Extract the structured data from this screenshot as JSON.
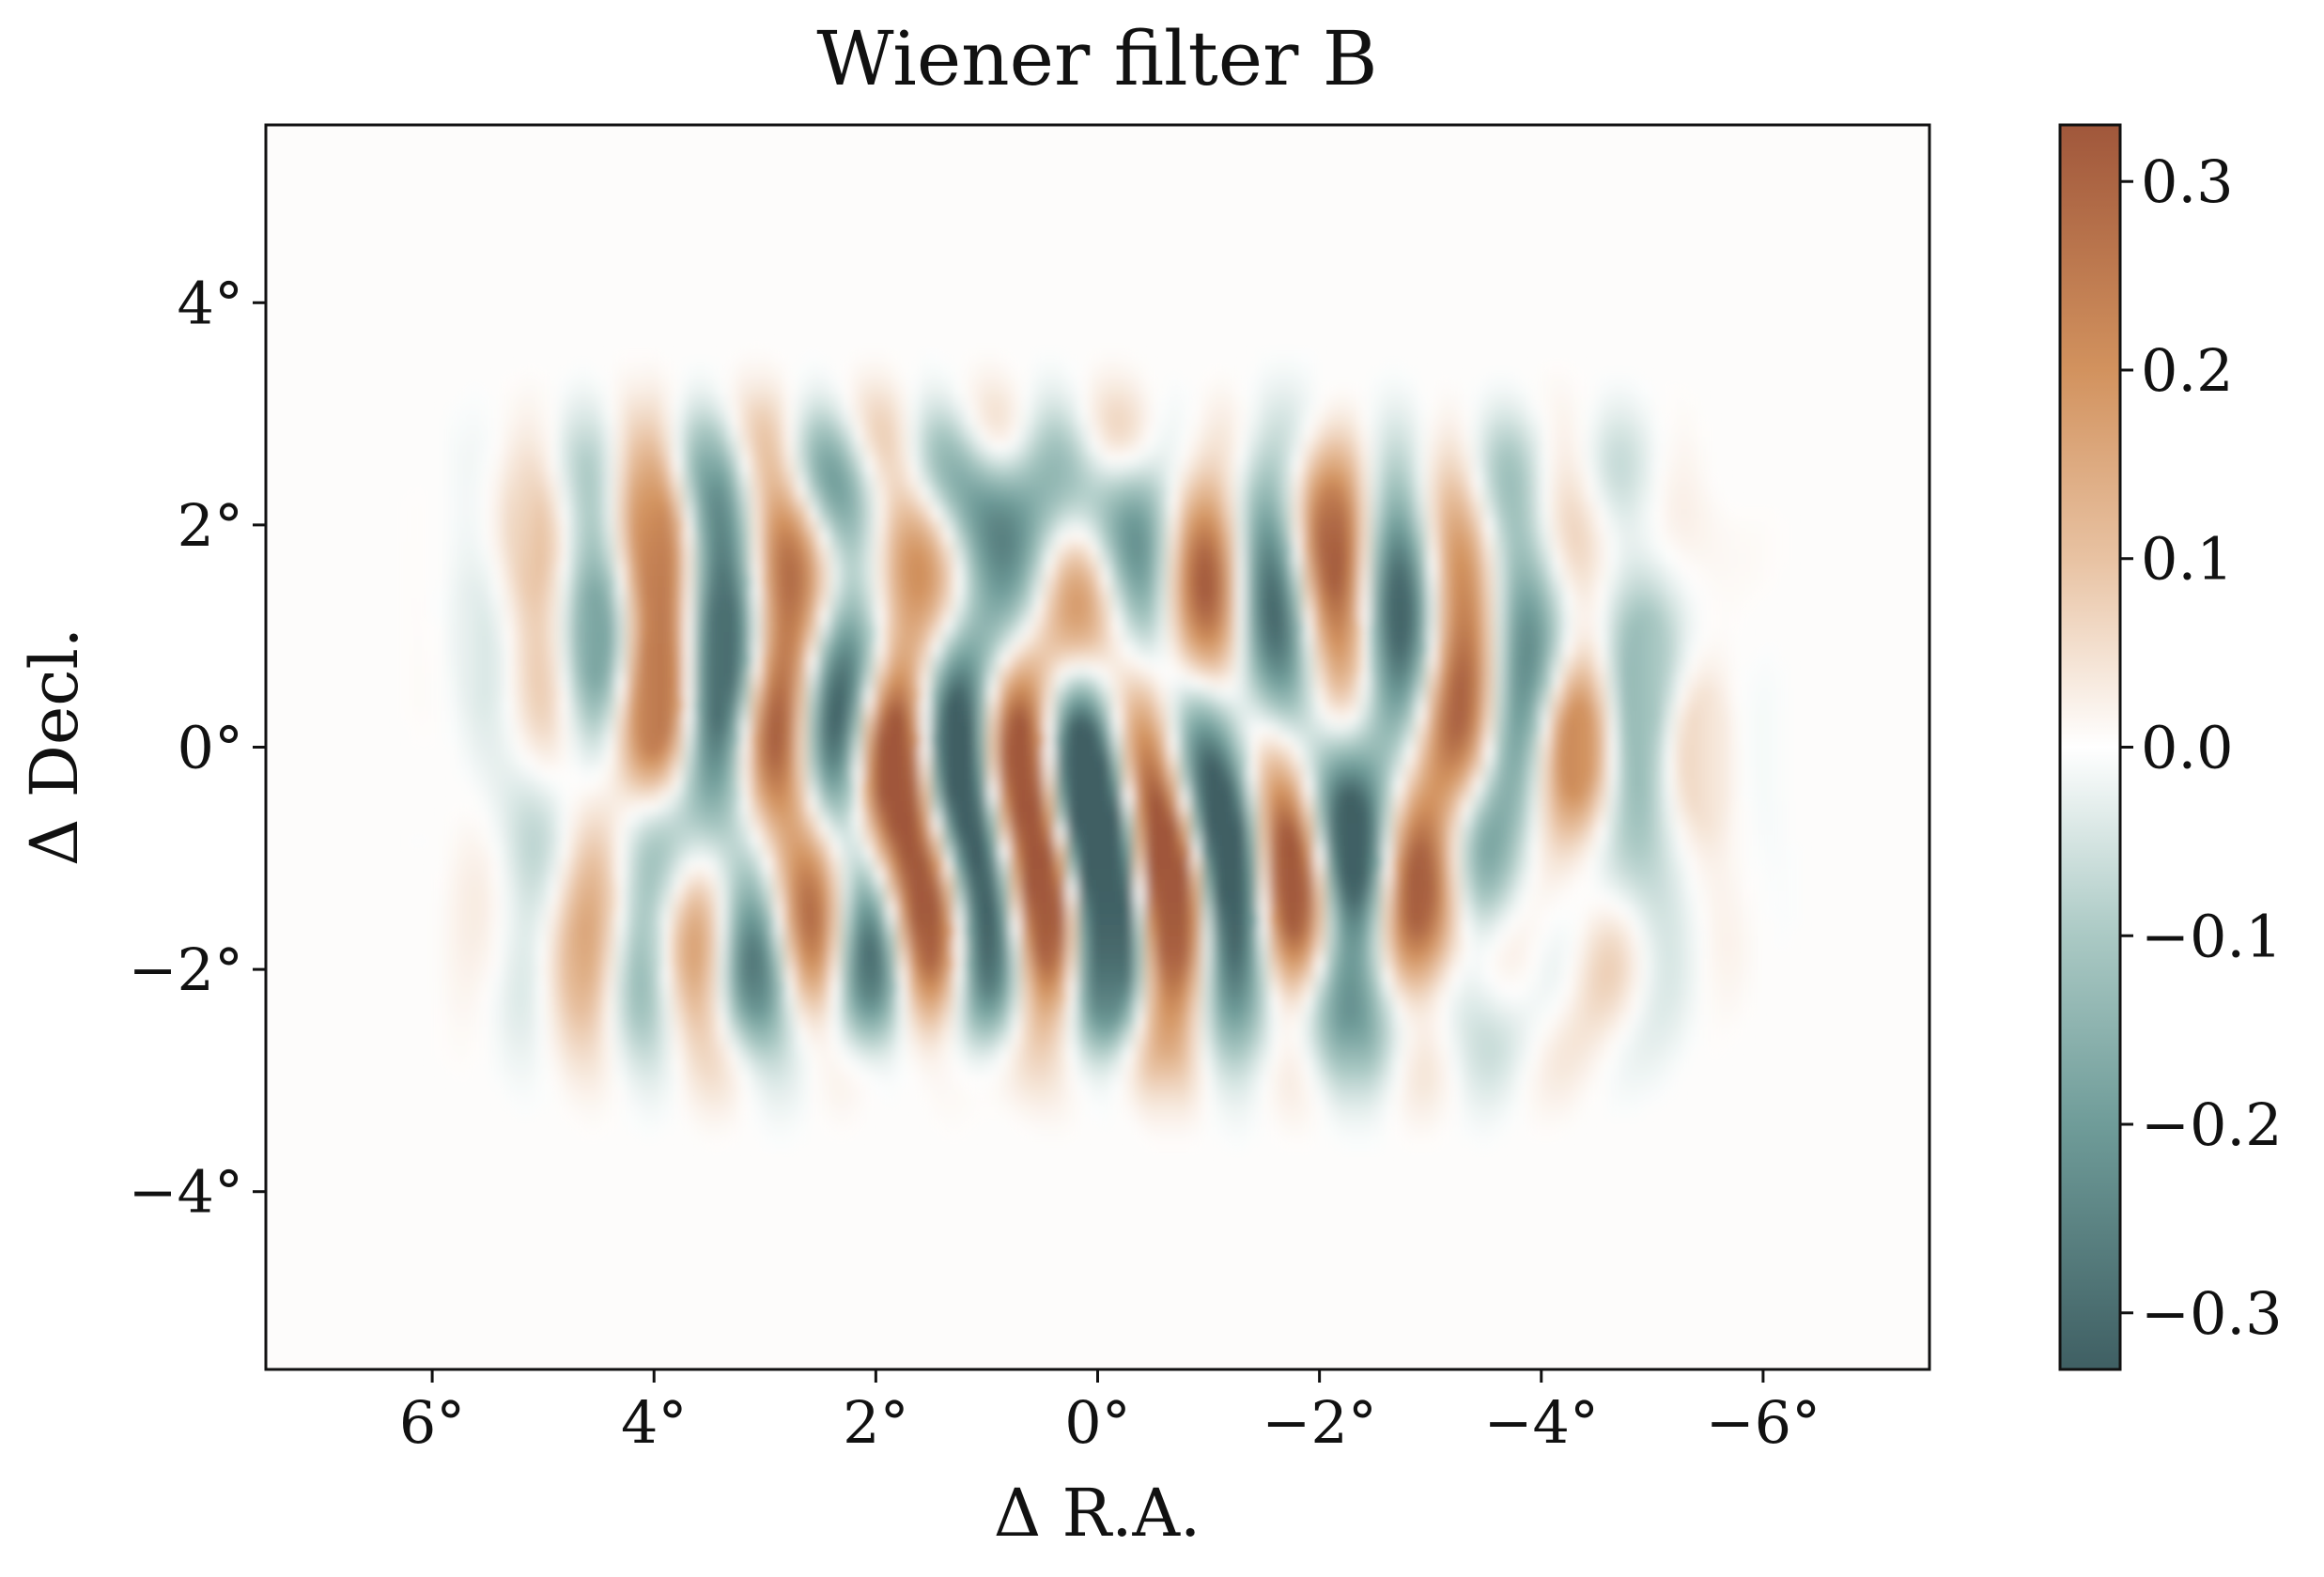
{
  "chart_data": {
    "type": "heatmap",
    "title": "Wiener filter B",
    "xlabel": "Δ R.A.",
    "ylabel": "Δ Decl.",
    "xlim": [
      7.5,
      -7.5
    ],
    "ylim": [
      -5.6,
      5.6
    ],
    "x_ticks": [
      {
        "value": 6,
        "label": "6°"
      },
      {
        "value": 4,
        "label": "4°"
      },
      {
        "value": 2,
        "label": "2°"
      },
      {
        "value": 0,
        "label": "0°"
      },
      {
        "value": -2,
        "label": "−2°"
      },
      {
        "value": -4,
        "label": "−4°"
      },
      {
        "value": -6,
        "label": "−6°"
      }
    ],
    "y_ticks": [
      {
        "value": 4,
        "label": "4°"
      },
      {
        "value": 2,
        "label": "2°"
      },
      {
        "value": 0,
        "label": "0°"
      },
      {
        "value": -2,
        "label": "−2°"
      },
      {
        "value": -4,
        "label": "−4°"
      }
    ],
    "colorbar": {
      "vmin": -0.33,
      "vmax": 0.33,
      "ticks": [
        {
          "value": 0.3,
          "label": "0.3"
        },
        {
          "value": 0.2,
          "label": "0.2"
        },
        {
          "value": 0.1,
          "label": "0.1"
        },
        {
          "value": 0.0,
          "label": "0.0"
        },
        {
          "value": -0.1,
          "label": "−0.1"
        },
        {
          "value": -0.2,
          "label": "−0.2"
        },
        {
          "value": -0.3,
          "label": "−0.3"
        }
      ],
      "colormap": [
        {
          "value": -0.33,
          "color": "#3f5f63"
        },
        {
          "value": -0.2,
          "color": "#6f9c99"
        },
        {
          "value": -0.1,
          "color": "#aac9c4"
        },
        {
          "value": 0.0,
          "color": "#ffffff"
        },
        {
          "value": 0.1,
          "color": "#e8c2a2"
        },
        {
          "value": 0.2,
          "color": "#d2925e"
        },
        {
          "value": 0.33,
          "color": "#a0573b"
        }
      ]
    },
    "field": {
      "ra_range": [
        5.2,
        -5.2
      ],
      "dec_range": [
        -3.0,
        3.0
      ],
      "amplitude_max": 0.33,
      "pattern": "vertical stripes with noisy texture"
    }
  }
}
